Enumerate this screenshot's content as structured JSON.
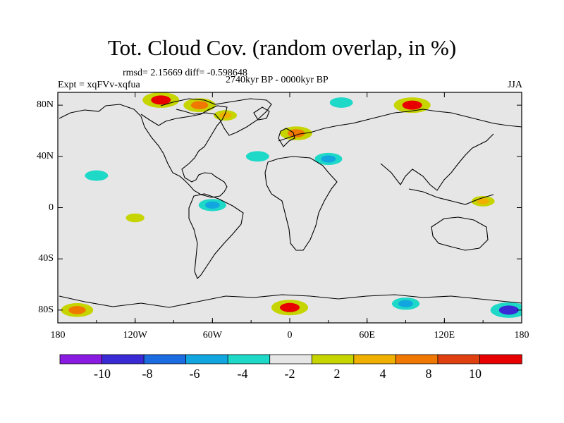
{
  "chart_data": {
    "type": "heatmap",
    "title": "Tot. Cloud Cov. (random overlap, in %)",
    "stats_text": "rmsd= 2.15669 diff= -0.598648",
    "experiment_text": "Expt = xqFVv-xqfua",
    "period_text": "2740kyr BP - 0000kyr BP",
    "season": "JJA",
    "x_ticks": [
      "180",
      "120W",
      "60W",
      "0",
      "60E",
      "120E",
      "180"
    ],
    "y_ticks": [
      "80N",
      "40N",
      "0",
      "40S",
      "80S"
    ],
    "xlim": [
      -180,
      180
    ],
    "ylim": [
      -90,
      90
    ],
    "colorbar": {
      "labels": [
        "-10",
        "-8",
        "-6",
        "-4",
        "-2",
        "2",
        "4",
        "8",
        "10"
      ],
      "colors": [
        "#8a1be3",
        "#3a2ad6",
        "#1a6ce0",
        "#12a6e0",
        "#1ed8c8",
        "#e6e6e6",
        "#c6d400",
        "#f0b000",
        "#f07800",
        "#e04010",
        "#e80000"
      ]
    },
    "anomaly_regions": [
      {
        "lon": -100,
        "lat": 84,
        "value": 10
      },
      {
        "lon": -70,
        "lat": 80,
        "value": 8
      },
      {
        "lon": -50,
        "lat": 72,
        "value": 4
      },
      {
        "lon": 5,
        "lat": 58,
        "value": 8
      },
      {
        "lon": 95,
        "lat": 80,
        "value": 10
      },
      {
        "lon": 40,
        "lat": 82,
        "value": -4
      },
      {
        "lon": -25,
        "lat": 40,
        "value": -4
      },
      {
        "lon": -150,
        "lat": 25,
        "value": -4
      },
      {
        "lon": -60,
        "lat": 2,
        "value": -6
      },
      {
        "lon": 30,
        "lat": 38,
        "value": -6
      },
      {
        "lon": 150,
        "lat": 5,
        "value": 4
      },
      {
        "lon": -120,
        "lat": -8,
        "value": 2
      },
      {
        "lon": 0,
        "lat": -78,
        "value": 10
      },
      {
        "lon": 170,
        "lat": -80,
        "value": -10
      },
      {
        "lon": -165,
        "lat": -80,
        "value": 8
      },
      {
        "lon": 90,
        "lat": -75,
        "value": -6
      }
    ]
  }
}
